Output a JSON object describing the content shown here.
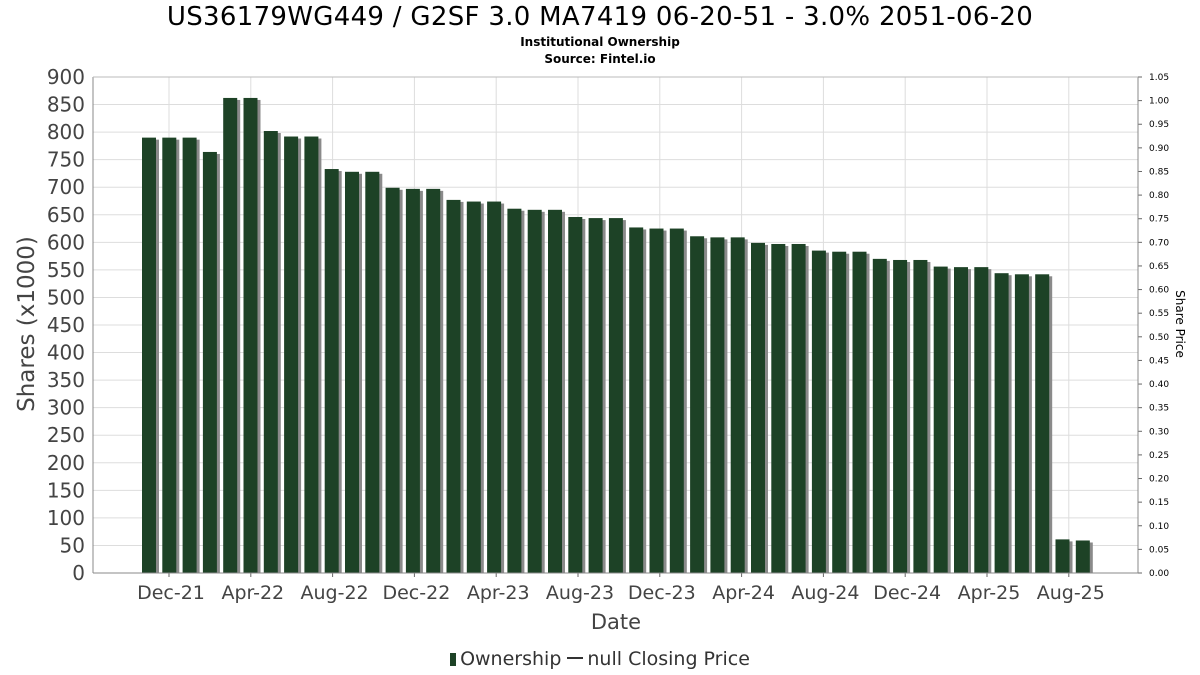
{
  "chart_data": {
    "type": "bar",
    "title": "US36179WG449 / G2SF 3.0 MA7419 06-20-51 - 3.0% 2051-06-20",
    "subtitle": "Institutional Ownership",
    "source": "Source: Fintel.io",
    "xlabel": "Date",
    "ylabel": "Shares (x1000)",
    "y2label": "Share Price",
    "ylim": [
      0,
      900
    ],
    "y_ticks": [
      0,
      50,
      100,
      150,
      200,
      250,
      300,
      350,
      400,
      450,
      500,
      550,
      600,
      650,
      700,
      750,
      800,
      850,
      900
    ],
    "y2lim": [
      0,
      1.05
    ],
    "y2_ticks": [
      "0.00",
      "0.05",
      "0.10",
      "0.15",
      "0.20",
      "0.25",
      "0.30",
      "0.35",
      "0.40",
      "0.45",
      "0.50",
      "0.55",
      "0.60",
      "0.65",
      "0.70",
      "0.75",
      "0.80",
      "0.85",
      "0.90",
      "0.95",
      "1.00",
      "1.05"
    ],
    "x_tick_labels": [
      "Dec-21",
      "Apr-22",
      "Aug-22",
      "Dec-22",
      "Apr-23",
      "Aug-23",
      "Dec-23",
      "Apr-24",
      "Aug-24",
      "Dec-24",
      "Apr-25",
      "Aug-25"
    ],
    "grid": true,
    "legend": [
      "Ownership",
      "null Closing Price"
    ],
    "legend_placement": "bottom",
    "colors": {
      "bar": "#1d4226",
      "bar_shadow": "#8a8a8a",
      "grid": "#dddddd"
    },
    "series": [
      {
        "name": "Ownership",
        "values": [
          790,
          790,
          790,
          764,
          862,
          862,
          802,
          792,
          792,
          733,
          728,
          728,
          699,
          697,
          697,
          677,
          674,
          674,
          661,
          659,
          659,
          646,
          644,
          644,
          627,
          625,
          625,
          611,
          609,
          609,
          599,
          597,
          597,
          585,
          583,
          583,
          570,
          568,
          568,
          556,
          555,
          555,
          544,
          542,
          542,
          61,
          59
        ]
      }
    ]
  }
}
